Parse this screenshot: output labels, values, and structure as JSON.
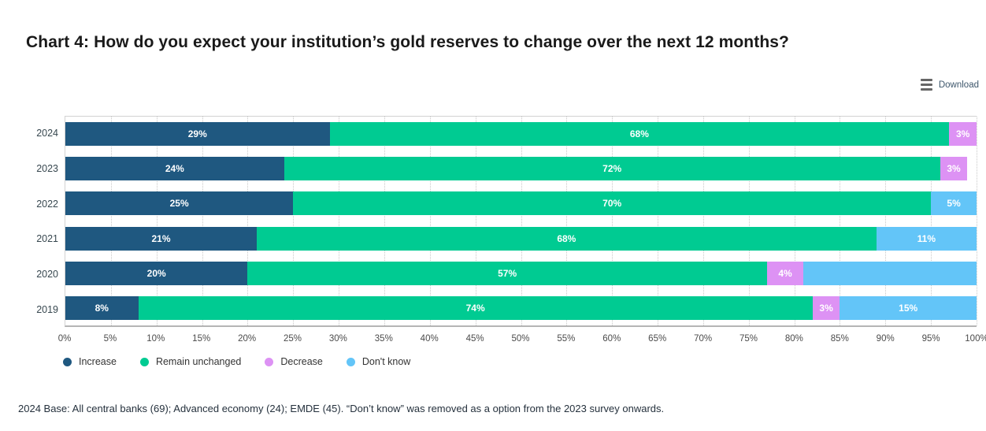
{
  "header": {
    "title": "Chart 4: How do you expect your institution’s gold reserves to change over the next 12 months?",
    "download_label": "Download"
  },
  "footnote": "2024 Base: All central banks (69); Advanced economy (24); EMDE (45). “Don’t know” was removed as a option from the 2023 survey onwards.",
  "chart_data": {
    "type": "bar",
    "orientation": "horizontal-stacked",
    "title": "Chart 4: How do you expect your institution’s gold reserves to change over the next 12 months?",
    "xlabel": "",
    "ylabel": "",
    "xlim": [
      0,
      100
    ],
    "grid": "dotted-vertical",
    "legend_position": "bottom-left",
    "categories": [
      "2024",
      "2023",
      "2022",
      "2021",
      "2020",
      "2019"
    ],
    "series": [
      {
        "name": "Increase",
        "color": "#1f5880",
        "values": [
          29,
          24,
          25,
          21,
          20,
          8
        ]
      },
      {
        "name": "Remain unchanged",
        "color": "#00cb92",
        "values": [
          68,
          72,
          70,
          68,
          57,
          74
        ]
      },
      {
        "name": "Decrease",
        "color": "#dd92f4",
        "values": [
          3,
          3,
          0,
          0,
          4,
          3
        ]
      },
      {
        "name": "Don't know",
        "color": "#63c5f8",
        "values": [
          0,
          0,
          5,
          11,
          19,
          15
        ]
      }
    ],
    "rows": [
      {
        "year": "2024",
        "segments": [
          {
            "series": "increase",
            "value": 29,
            "label": "29%"
          },
          {
            "series": "remain",
            "value": 68,
            "label": "68%"
          },
          {
            "series": "decrease",
            "value": 3,
            "label": "3%"
          }
        ]
      },
      {
        "year": "2023",
        "segments": [
          {
            "series": "increase",
            "value": 24,
            "label": "24%"
          },
          {
            "series": "remain",
            "value": 72,
            "label": "72%"
          },
          {
            "series": "decrease",
            "value": 3,
            "label": "3%"
          }
        ]
      },
      {
        "year": "2022",
        "segments": [
          {
            "series": "increase",
            "value": 25,
            "label": "25%"
          },
          {
            "series": "remain",
            "value": 70,
            "label": "70%"
          },
          {
            "series": "dontknow",
            "value": 5,
            "label": "5%"
          }
        ]
      },
      {
        "year": "2021",
        "segments": [
          {
            "series": "increase",
            "value": 21,
            "label": "21%"
          },
          {
            "series": "remain",
            "value": 68,
            "label": "68%"
          },
          {
            "series": "dontknow",
            "value": 11,
            "label": "11%"
          }
        ]
      },
      {
        "year": "2020",
        "segments": [
          {
            "series": "increase",
            "value": 20,
            "label": "20%"
          },
          {
            "series": "remain",
            "value": 57,
            "label": "57%"
          },
          {
            "series": "decrease",
            "value": 4,
            "label": "4%"
          },
          {
            "series": "dontknow",
            "value": 19,
            "label": ""
          }
        ]
      },
      {
        "year": "2019",
        "segments": [
          {
            "series": "increase",
            "value": 8,
            "label": "8%"
          },
          {
            "series": "remain",
            "value": 74,
            "label": "74%"
          },
          {
            "series": "decrease",
            "value": 3,
            "label": "3%"
          },
          {
            "series": "dontknow",
            "value": 15,
            "label": "15%"
          }
        ]
      }
    ],
    "series_colors": {
      "increase": "#1f5880",
      "remain": "#00cb92",
      "decrease": "#dd92f4",
      "dontknow": "#63c5f8"
    },
    "ticks": [
      "0%",
      "5%",
      "10%",
      "15%",
      "20%",
      "25%",
      "30%",
      "35%",
      "40%",
      "45%",
      "50%",
      "55%",
      "60%",
      "65%",
      "70%",
      "75%",
      "80%",
      "85%",
      "90%",
      "95%",
      "100%"
    ],
    "legend": [
      {
        "key": "increase",
        "label": "Increase"
      },
      {
        "key": "remain",
        "label": "Remain unchanged"
      },
      {
        "key": "decrease",
        "label": "Decrease"
      },
      {
        "key": "dontknow",
        "label": "Don't know"
      }
    ]
  }
}
